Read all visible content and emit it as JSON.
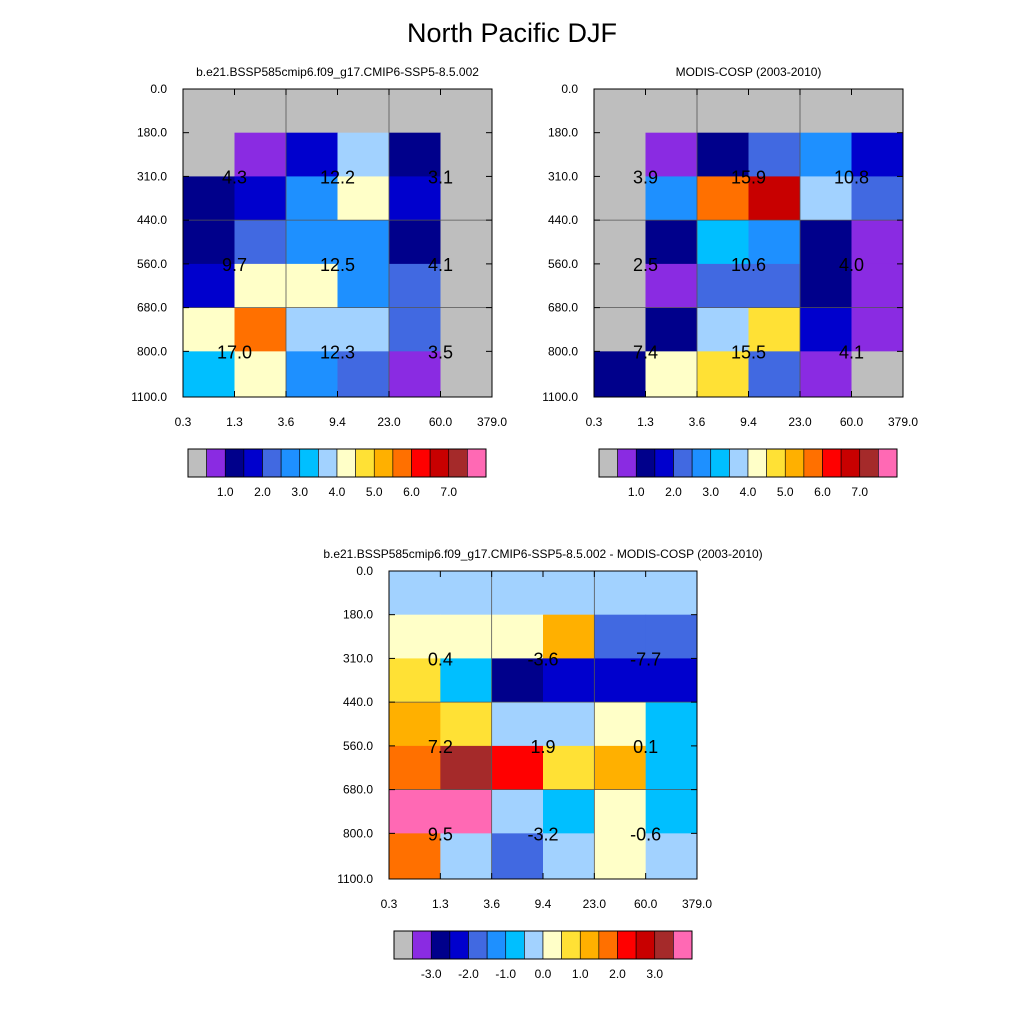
{
  "title": "North Pacific DJF",
  "colors": {
    "abs_palette": [
      "#bebebe",
      "#8a2be2",
      "#00008b",
      "#0000cd",
      "#4169e1",
      "#1e90ff",
      "#00bfff",
      "#a2d2ff",
      "#ffffc8",
      "#ffe135",
      "#ffb000",
      "#ff7000",
      "#ff0000",
      "#c80000",
      "#a52a2a",
      "#ff69b4"
    ],
    "diff_palette": [
      "#bebebe",
      "#8a2be2",
      "#00008b",
      "#0000cd",
      "#4169e1",
      "#1e90ff",
      "#00bfff",
      "#a2d2ff",
      "#ffffc8",
      "#ffe135",
      "#ffb000",
      "#ff7000",
      "#ff0000",
      "#c80000",
      "#a52a2a",
      "#ff69b4"
    ]
  },
  "chart_data": [
    {
      "type": "heatmap",
      "title": "b.e21.BSSP585cmip6.f09_g17.CMIP6-SSP5-8.5.002",
      "x_tick_labels": [
        "0.3",
        "1.3",
        "3.6",
        "9.4",
        "23.0",
        "60.0",
        "379.0"
      ],
      "y_tick_labels": [
        "0.0",
        "180.0",
        "310.0",
        "440.0",
        "560.0",
        "680.0",
        "800.0",
        "1100.0"
      ],
      "colorbar_labels": [
        "1.0",
        "2.0",
        "3.0",
        "4.0",
        "5.0",
        "6.0",
        "7.0"
      ],
      "palette": "abs_palette",
      "cell_color_index": [
        [
          0,
          0,
          0,
          0,
          0,
          0
        ],
        [
          0,
          1,
          3,
          7,
          2,
          0
        ],
        [
          2,
          3,
          5,
          8,
          3,
          0
        ],
        [
          2,
          4,
          5,
          5,
          2,
          0
        ],
        [
          3,
          8,
          8,
          5,
          4,
          0
        ],
        [
          8,
          11,
          7,
          7,
          4,
          0
        ],
        [
          6,
          8,
          5,
          4,
          1,
          0
        ]
      ],
      "annotations": [
        {
          "row": 1,
          "col": 0,
          "text": "4.3"
        },
        {
          "row": 1,
          "col": 1,
          "text": "12.2"
        },
        {
          "row": 1,
          "col": 2,
          "text": "3.1"
        },
        {
          "row": 3,
          "col": 0,
          "text": "9.7"
        },
        {
          "row": 3,
          "col": 1,
          "text": "12.5"
        },
        {
          "row": 3,
          "col": 2,
          "text": "4.1"
        },
        {
          "row": 5,
          "col": 0,
          "text": "17.0"
        },
        {
          "row": 5,
          "col": 1,
          "text": "12.3"
        },
        {
          "row": 5,
          "col": 2,
          "text": "3.5"
        }
      ]
    },
    {
      "type": "heatmap",
      "title": "MODIS-COSP (2003-2010)",
      "x_tick_labels": [
        "0.3",
        "1.3",
        "3.6",
        "9.4",
        "23.0",
        "60.0",
        "379.0"
      ],
      "y_tick_labels": [
        "0.0",
        "180.0",
        "310.0",
        "440.0",
        "560.0",
        "680.0",
        "800.0",
        "1100.0"
      ],
      "colorbar_labels": [
        "1.0",
        "2.0",
        "3.0",
        "4.0",
        "5.0",
        "6.0",
        "7.0"
      ],
      "palette": "abs_palette",
      "cell_color_index": [
        [
          0,
          0,
          0,
          0,
          0,
          0
        ],
        [
          0,
          1,
          2,
          4,
          5,
          3
        ],
        [
          0,
          5,
          11,
          13,
          7,
          4
        ],
        [
          0,
          2,
          6,
          5,
          2,
          1
        ],
        [
          0,
          1,
          4,
          4,
          2,
          1
        ],
        [
          0,
          2,
          7,
          9,
          3,
          1
        ],
        [
          2,
          8,
          9,
          4,
          1,
          0
        ]
      ],
      "annotations": [
        {
          "row": 1,
          "col": 0,
          "text": "3.9"
        },
        {
          "row": 1,
          "col": 1,
          "text": "15.9"
        },
        {
          "row": 1,
          "col": 2,
          "text": "10.8"
        },
        {
          "row": 3,
          "col": 0,
          "text": "2.5"
        },
        {
          "row": 3,
          "col": 1,
          "text": "10.6"
        },
        {
          "row": 3,
          "col": 2,
          "text": "4.0"
        },
        {
          "row": 5,
          "col": 0,
          "text": "7.4"
        },
        {
          "row": 5,
          "col": 1,
          "text": "15.5"
        },
        {
          "row": 5,
          "col": 2,
          "text": "4.1"
        }
      ]
    },
    {
      "type": "heatmap",
      "title": "b.e21.BSSP585cmip6.f09_g17.CMIP6-SSP5-8.5.002 - MODIS-COSP (2003-2010)",
      "x_tick_labels": [
        "0.3",
        "1.3",
        "3.6",
        "9.4",
        "23.0",
        "60.0",
        "379.0"
      ],
      "y_tick_labels": [
        "0.0",
        "180.0",
        "310.0",
        "440.0",
        "560.0",
        "680.0",
        "800.0",
        "1100.0"
      ],
      "colorbar_labels": [
        "-3.0",
        "-2.0",
        "-1.0",
        "0.0",
        "1.0",
        "2.0",
        "3.0"
      ],
      "palette": "diff_palette",
      "cell_color_index": [
        [
          7,
          7,
          7,
          7,
          7,
          7
        ],
        [
          8,
          8,
          8,
          10,
          4,
          4
        ],
        [
          9,
          6,
          2,
          3,
          3,
          3
        ],
        [
          10,
          9,
          7,
          7,
          8,
          6
        ],
        [
          11,
          14,
          12,
          9,
          10,
          6
        ],
        [
          15,
          15,
          7,
          6,
          8,
          6
        ],
        [
          11,
          7,
          4,
          7,
          8,
          7
        ]
      ],
      "annotations": [
        {
          "row": 1,
          "col": 0,
          "text": "0.4"
        },
        {
          "row": 1,
          "col": 1,
          "text": "-3.6"
        },
        {
          "row": 1,
          "col": 2,
          "text": "-7.7"
        },
        {
          "row": 3,
          "col": 0,
          "text": "7.2"
        },
        {
          "row": 3,
          "col": 1,
          "text": "1.9"
        },
        {
          "row": 3,
          "col": 2,
          "text": "0.1"
        },
        {
          "row": 5,
          "col": 0,
          "text": "9.5"
        },
        {
          "row": 5,
          "col": 1,
          "text": "-3.2"
        },
        {
          "row": 5,
          "col": 2,
          "text": "-0.6"
        }
      ]
    }
  ]
}
